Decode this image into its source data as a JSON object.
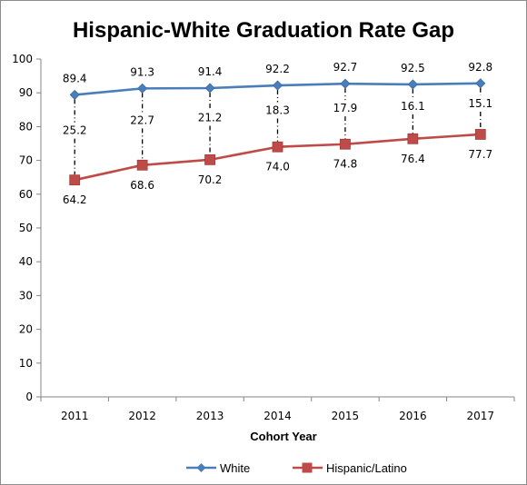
{
  "chart_data": {
    "type": "line",
    "title": "Hispanic-White Graduation Rate Gap",
    "xlabel": "Cohort Year",
    "ylabel": "",
    "ylim": [
      0,
      100
    ],
    "y_ticks": [
      0,
      10,
      20,
      30,
      40,
      50,
      60,
      70,
      80,
      90,
      100
    ],
    "categories": [
      "2011",
      "2012",
      "2013",
      "2014",
      "2015",
      "2016",
      "2017"
    ],
    "series": [
      {
        "name": "White",
        "values": [
          89.4,
          91.3,
          91.4,
          92.2,
          92.7,
          92.5,
          92.8
        ],
        "color": "#4a7ebb",
        "marker": "diamond"
      },
      {
        "name": "Hispanic/Latino",
        "values": [
          64.2,
          68.6,
          70.2,
          74.0,
          74.8,
          76.4,
          77.7
        ],
        "color": "#be4b48",
        "marker": "square"
      }
    ],
    "gap_values": [
      "25.2",
      "22.7",
      "21.2",
      "18.3",
      "17.9",
      "16.1",
      "15.1"
    ],
    "white_labels": [
      "89.4",
      "91.3",
      "91.4",
      "92.2",
      "92.7",
      "92.5",
      "92.8"
    ],
    "hispanic_labels": [
      "64.2",
      "68.6",
      "70.2",
      "74.0",
      "74.8",
      "76.4",
      "77.7"
    ],
    "grid": false,
    "legend_position": "bottom"
  }
}
